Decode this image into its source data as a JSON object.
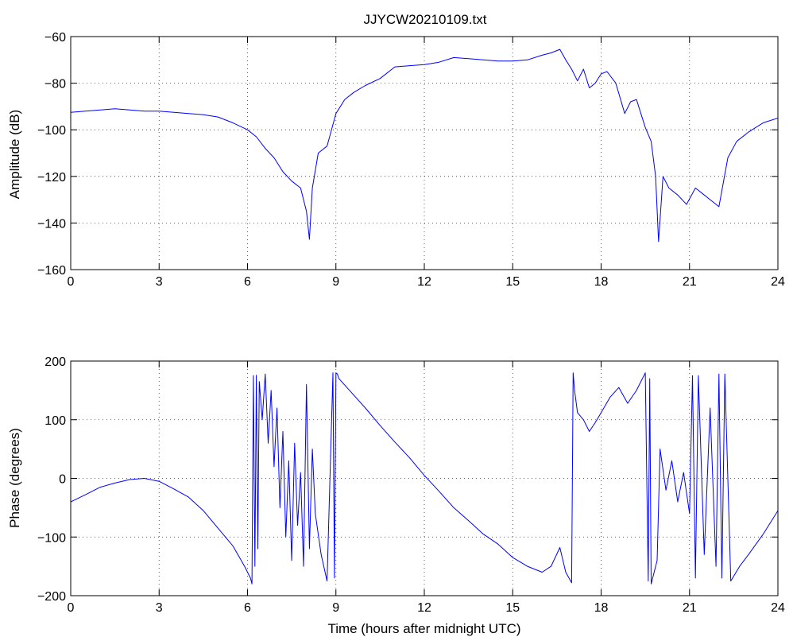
{
  "title": "JJYCW20210109.txt",
  "chart_data": [
    {
      "type": "line",
      "ylabel": "Amplitude (dB)",
      "xlabel": "",
      "xlim": [
        0,
        24
      ],
      "ylim": [
        -160,
        -60
      ],
      "xticks": [
        0,
        3,
        6,
        9,
        12,
        15,
        18,
        21,
        24
      ],
      "yticks": [
        -160,
        -140,
        -120,
        -100,
        -80,
        -60
      ],
      "ytick_labels": [
        "−160",
        "−140",
        "−120",
        "−100",
        "−80",
        "−60"
      ],
      "grid": true,
      "line_color": "#0000ff",
      "series": [
        {
          "x": [
            0,
            0.5,
            1,
            1.5,
            2,
            2.5,
            3,
            3.5,
            4,
            4.5,
            5,
            5.5,
            6,
            6.3,
            6.6,
            6.9,
            7.2,
            7.5,
            7.8,
            8.0,
            8.1,
            8.2,
            8.4,
            8.7,
            9.0,
            9.3,
            9.6,
            10.0,
            10.5,
            11.0,
            11.5,
            12.0,
            12.5,
            13.0,
            13.5,
            14.0,
            14.5,
            15.0,
            15.5,
            16.0,
            16.3,
            16.6,
            16.8,
            17.0,
            17.2,
            17.4,
            17.6,
            17.8,
            18.0,
            18.2,
            18.5,
            18.8,
            19.0,
            19.2,
            19.5,
            19.7,
            19.85,
            19.95,
            20.1,
            20.3,
            20.6,
            20.9,
            21.2,
            21.5,
            21.8,
            22.0,
            22.3,
            22.6,
            23.0,
            23.5,
            24.0
          ],
          "y": [
            -92.5,
            -92,
            -91.5,
            -91,
            -91.5,
            -92,
            -92,
            -92.5,
            -93,
            -93.5,
            -94.5,
            -97,
            -100,
            -103,
            -108,
            -112,
            -118,
            -122,
            -125,
            -135,
            -147,
            -125,
            -110,
            -107,
            -93,
            -87,
            -84,
            -81,
            -78,
            -73,
            -72.5,
            -72,
            -71,
            -69,
            -69.5,
            -70,
            -70.5,
            -70.5,
            -70,
            -68,
            -67,
            -65.5,
            -70,
            -74,
            -79,
            -74,
            -82,
            -80,
            -76,
            -75,
            -80,
            -93,
            -88,
            -87,
            -99,
            -105,
            -120,
            -148,
            -120,
            -125,
            -128,
            -132,
            -125,
            -128,
            -131,
            -133,
            -112,
            -105,
            -101,
            -97,
            -95
          ]
        }
      ]
    },
    {
      "type": "line",
      "ylabel": "Phase (degrees)",
      "xlabel": "Time (hours after midnight UTC)",
      "xlim": [
        0,
        24
      ],
      "ylim": [
        -200,
        200
      ],
      "xticks": [
        0,
        3,
        6,
        9,
        12,
        15,
        18,
        21,
        24
      ],
      "yticks": [
        -200,
        -100,
        0,
        100,
        200
      ],
      "ytick_labels": [
        "−200",
        "−100",
        "0",
        "100",
        "200"
      ],
      "grid": true,
      "line_color": "#0000ff",
      "series": [
        {
          "x": [
            0,
            0.5,
            1,
            1.5,
            2,
            2.5,
            3,
            3.5,
            4,
            4.5,
            5,
            5.5,
            5.9,
            6.1,
            6.15,
            6.2,
            6.25,
            6.3,
            6.35,
            6.4,
            6.5,
            6.6,
            6.7,
            6.8,
            6.9,
            7.0,
            7.1,
            7.2,
            7.3,
            7.4,
            7.5,
            7.6,
            7.7,
            7.8,
            7.9,
            8.0,
            8.1,
            8.2,
            8.3,
            8.5,
            8.7,
            8.9,
            8.95,
            9.0,
            9.05,
            9.1,
            9.5,
            10,
            10.5,
            11,
            11.5,
            12,
            12.5,
            13,
            13.5,
            14,
            14.5,
            15,
            15.5,
            16,
            16.3,
            16.6,
            16.8,
            17.0,
            17.05,
            17.1,
            17.2,
            17.4,
            17.6,
            17.8,
            18.0,
            18.3,
            18.6,
            18.9,
            19.2,
            19.5,
            19.6,
            19.65,
            19.7,
            19.9,
            20.0,
            20.2,
            20.4,
            20.6,
            20.8,
            21.0,
            21.1,
            21.2,
            21.3,
            21.5,
            21.7,
            21.9,
            22.0,
            22.1,
            22.2,
            22.4,
            22.7,
            23.0,
            23.5,
            24.0
          ],
          "y": [
            -40,
            -28,
            -15,
            -8,
            -2,
            0,
            -5,
            -18,
            -32,
            -55,
            -85,
            -115,
            -150,
            -170,
            -180,
            175,
            -150,
            176,
            -120,
            165,
            100,
            178,
            60,
            150,
            20,
            120,
            -50,
            80,
            -100,
            30,
            -140,
            60,
            -80,
            10,
            -150,
            160,
            -120,
            50,
            -60,
            -130,
            -175,
            180,
            -170,
            180,
            178,
            170,
            148,
            120,
            90,
            62,
            35,
            5,
            -22,
            -50,
            -72,
            -95,
            -112,
            -135,
            -150,
            -160,
            -150,
            -118,
            -160,
            -178,
            180,
            150,
            112,
            100,
            80,
            95,
            112,
            138,
            155,
            128,
            150,
            180,
            -175,
            170,
            -180,
            -140,
            50,
            -20,
            30,
            -40,
            10,
            -60,
            175,
            -170,
            175,
            -130,
            120,
            -150,
            178,
            -170,
            178,
            -175,
            -150,
            -130,
            -95,
            -55
          ]
        }
      ]
    }
  ]
}
